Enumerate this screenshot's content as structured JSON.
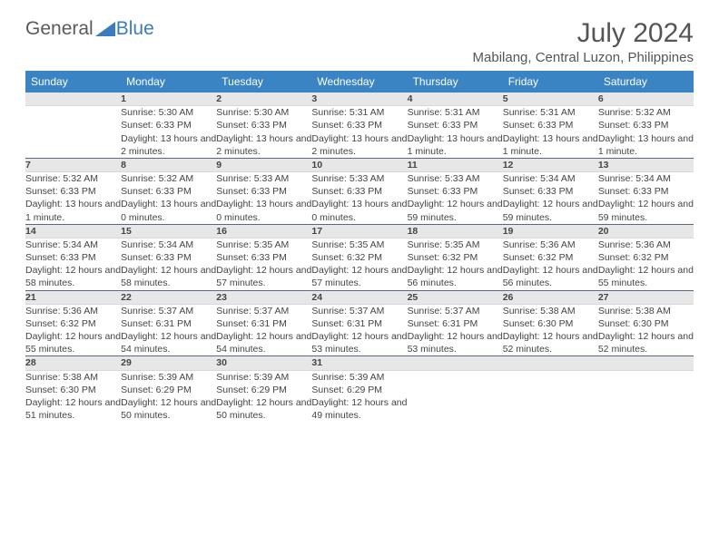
{
  "brand": {
    "part1": "General",
    "part2": "Blue"
  },
  "title": "July 2024",
  "location": "Mabilang, Central Luzon, Philippines",
  "colors": {
    "header_bg": "#3b84c4",
    "daynum_bg": "#e7e7e7",
    "sep": "#5a6a7a",
    "text": "#444"
  },
  "day_headers": [
    "Sunday",
    "Monday",
    "Tuesday",
    "Wednesday",
    "Thursday",
    "Friday",
    "Saturday"
  ],
  "weeks": [
    {
      "nums": [
        "",
        "1",
        "2",
        "3",
        "4",
        "5",
        "6"
      ],
      "info": [
        "",
        "Sunrise: 5:30 AM\nSunset: 6:33 PM\nDaylight: 13 hours and 2 minutes.",
        "Sunrise: 5:30 AM\nSunset: 6:33 PM\nDaylight: 13 hours and 2 minutes.",
        "Sunrise: 5:31 AM\nSunset: 6:33 PM\nDaylight: 13 hours and 2 minutes.",
        "Sunrise: 5:31 AM\nSunset: 6:33 PM\nDaylight: 13 hours and 1 minute.",
        "Sunrise: 5:31 AM\nSunset: 6:33 PM\nDaylight: 13 hours and 1 minute.",
        "Sunrise: 5:32 AM\nSunset: 6:33 PM\nDaylight: 13 hours and 1 minute."
      ]
    },
    {
      "nums": [
        "7",
        "8",
        "9",
        "10",
        "11",
        "12",
        "13"
      ],
      "info": [
        "Sunrise: 5:32 AM\nSunset: 6:33 PM\nDaylight: 13 hours and 1 minute.",
        "Sunrise: 5:32 AM\nSunset: 6:33 PM\nDaylight: 13 hours and 0 minutes.",
        "Sunrise: 5:33 AM\nSunset: 6:33 PM\nDaylight: 13 hours and 0 minutes.",
        "Sunrise: 5:33 AM\nSunset: 6:33 PM\nDaylight: 13 hours and 0 minutes.",
        "Sunrise: 5:33 AM\nSunset: 6:33 PM\nDaylight: 12 hours and 59 minutes.",
        "Sunrise: 5:34 AM\nSunset: 6:33 PM\nDaylight: 12 hours and 59 minutes.",
        "Sunrise: 5:34 AM\nSunset: 6:33 PM\nDaylight: 12 hours and 59 minutes."
      ]
    },
    {
      "nums": [
        "14",
        "15",
        "16",
        "17",
        "18",
        "19",
        "20"
      ],
      "info": [
        "Sunrise: 5:34 AM\nSunset: 6:33 PM\nDaylight: 12 hours and 58 minutes.",
        "Sunrise: 5:34 AM\nSunset: 6:33 PM\nDaylight: 12 hours and 58 minutes.",
        "Sunrise: 5:35 AM\nSunset: 6:33 PM\nDaylight: 12 hours and 57 minutes.",
        "Sunrise: 5:35 AM\nSunset: 6:32 PM\nDaylight: 12 hours and 57 minutes.",
        "Sunrise: 5:35 AM\nSunset: 6:32 PM\nDaylight: 12 hours and 56 minutes.",
        "Sunrise: 5:36 AM\nSunset: 6:32 PM\nDaylight: 12 hours and 56 minutes.",
        "Sunrise: 5:36 AM\nSunset: 6:32 PM\nDaylight: 12 hours and 55 minutes."
      ]
    },
    {
      "nums": [
        "21",
        "22",
        "23",
        "24",
        "25",
        "26",
        "27"
      ],
      "info": [
        "Sunrise: 5:36 AM\nSunset: 6:32 PM\nDaylight: 12 hours and 55 minutes.",
        "Sunrise: 5:37 AM\nSunset: 6:31 PM\nDaylight: 12 hours and 54 minutes.",
        "Sunrise: 5:37 AM\nSunset: 6:31 PM\nDaylight: 12 hours and 54 minutes.",
        "Sunrise: 5:37 AM\nSunset: 6:31 PM\nDaylight: 12 hours and 53 minutes.",
        "Sunrise: 5:37 AM\nSunset: 6:31 PM\nDaylight: 12 hours and 53 minutes.",
        "Sunrise: 5:38 AM\nSunset: 6:30 PM\nDaylight: 12 hours and 52 minutes.",
        "Sunrise: 5:38 AM\nSunset: 6:30 PM\nDaylight: 12 hours and 52 minutes."
      ]
    },
    {
      "nums": [
        "28",
        "29",
        "30",
        "31",
        "",
        "",
        ""
      ],
      "info": [
        "Sunrise: 5:38 AM\nSunset: 6:30 PM\nDaylight: 12 hours and 51 minutes.",
        "Sunrise: 5:39 AM\nSunset: 6:29 PM\nDaylight: 12 hours and 50 minutes.",
        "Sunrise: 5:39 AM\nSunset: 6:29 PM\nDaylight: 12 hours and 50 minutes.",
        "Sunrise: 5:39 AM\nSunset: 6:29 PM\nDaylight: 12 hours and 49 minutes.",
        "",
        "",
        ""
      ]
    }
  ]
}
